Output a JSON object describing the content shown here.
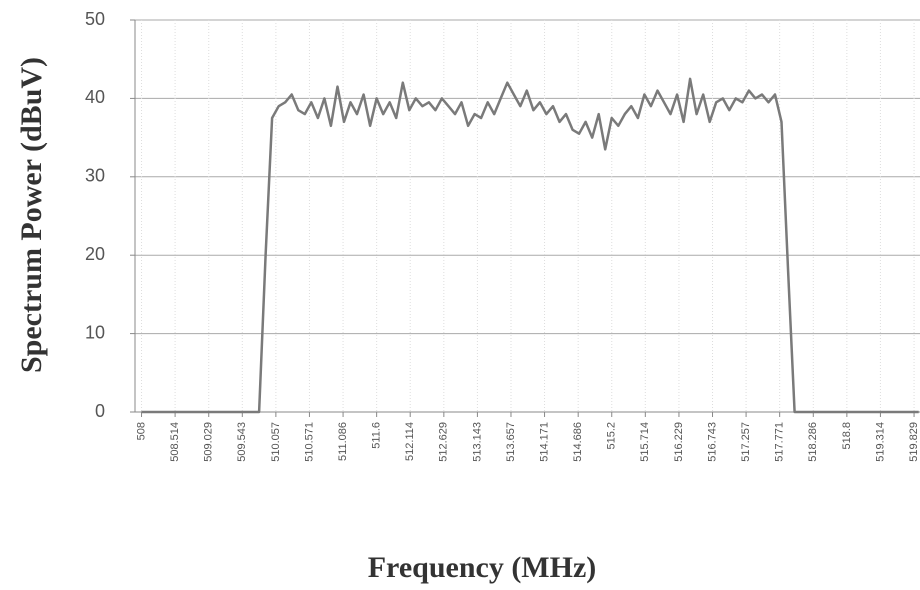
{
  "chart_data": {
    "type": "line",
    "x_label": "Frequency (MHz)",
    "y_label": "Spectrum Power (dBuV)",
    "x": [
      508,
      509,
      509.8,
      509.9,
      510.0,
      510.1,
      510.2,
      510.3,
      510.4,
      510.5,
      510.6,
      510.7,
      510.8,
      510.9,
      511.0,
      511.1,
      511.2,
      511.3,
      511.4,
      511.5,
      511.6,
      511.7,
      511.8,
      511.9,
      512.0,
      512.1,
      512.2,
      512.3,
      512.4,
      512.5,
      512.6,
      512.7,
      512.8,
      512.9,
      513.0,
      513.1,
      513.2,
      513.3,
      513.4,
      513.5,
      513.6,
      513.7,
      513.8,
      513.9,
      514.0,
      514.1,
      514.2,
      514.3,
      514.4,
      514.5,
      514.6,
      514.7,
      514.8,
      514.9,
      515.0,
      515.1,
      515.2,
      515.3,
      515.4,
      515.5,
      515.6,
      515.7,
      515.8,
      515.9,
      516.0,
      516.1,
      516.2,
      516.3,
      516.4,
      516.5,
      516.6,
      516.7,
      516.8,
      516.9,
      517.0,
      517.1,
      517.2,
      517.3,
      517.4,
      517.5,
      517.6,
      517.7,
      517.8,
      517.9,
      518.0,
      519,
      519.9
    ],
    "values": [
      0,
      0,
      0,
      20,
      37.5,
      39,
      39.5,
      40.5,
      38.5,
      38,
      39.5,
      37.5,
      40,
      36.5,
      41.5,
      37,
      39.5,
      38,
      40.5,
      36.5,
      40,
      38,
      39.5,
      37.5,
      42,
      38.5,
      40,
      39,
      39.5,
      38.5,
      40,
      39,
      38,
      39.5,
      36.5,
      38,
      37.5,
      39.5,
      38,
      40,
      42,
      40.5,
      39,
      41,
      38.5,
      39.5,
      38,
      39,
      37,
      38,
      36,
      35.5,
      37,
      35,
      38,
      33.5,
      37.5,
      36.5,
      38,
      39,
      37.5,
      40.5,
      39,
      41,
      39.5,
      38,
      40.5,
      37,
      42.5,
      38,
      40.5,
      37,
      39.5,
      40,
      38.5,
      40,
      39.5,
      41,
      40,
      40.5,
      39.5,
      40.5,
      37,
      18,
      0,
      0,
      0
    ],
    "color": "#7a7a7a",
    "xlim": [
      507.9,
      519.92
    ],
    "xticks": [
      508,
      508.514,
      509.029,
      509.543,
      510.057,
      510.571,
      511.086,
      511.6,
      512.114,
      512.629,
      513.143,
      513.657,
      514.171,
      514.686,
      515.2,
      515.714,
      516.229,
      516.743,
      517.257,
      517.771,
      518.286,
      518.8,
      519.314,
      519.829
    ],
    "ylim": [
      0,
      50
    ],
    "yticks": [
      0,
      10,
      20,
      30,
      40,
      50
    ],
    "grid": true
  }
}
